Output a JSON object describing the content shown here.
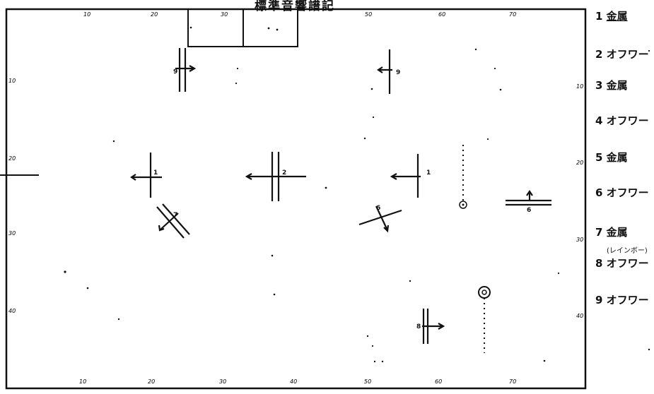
{
  "title": "標準音響譜記",
  "legend": [
    {
      "num": "1",
      "label": "金属"
    },
    {
      "num": "2",
      "label": "オフワー"
    },
    {
      "num": "3",
      "label": "金属"
    },
    {
      "num": "4",
      "label": "オフワー"
    },
    {
      "num": "5",
      "label": "金属"
    },
    {
      "num": "6",
      "label": "オフワー"
    },
    {
      "num": "7",
      "label": "金属"
    },
    {
      "num": "8",
      "label": "オフワー"
    },
    {
      "num": "9",
      "label": "オフワー"
    }
  ],
  "legend_sub": "(レインボー)",
  "x_ticks": [
    "10",
    "20",
    "30",
    "40",
    "50",
    "60",
    "70"
  ],
  "y_ticks": [
    "10",
    "20",
    "30",
    "40"
  ],
  "right_ticks": [
    "10",
    "20",
    "30",
    "40"
  ],
  "mark_labels": [
    "1",
    "2",
    "1",
    "9",
    "9",
    "6",
    "6",
    "7",
    "8"
  ],
  "colors": {
    "ink": "#111111",
    "paper": "#ffffff"
  }
}
